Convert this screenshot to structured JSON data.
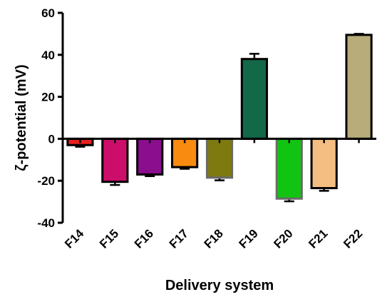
{
  "chart_data": {
    "type": "bar",
    "categories": [
      "F14",
      "F15",
      "F16",
      "F17",
      "F18",
      "F19",
      "F20",
      "F21",
      "F22"
    ],
    "values": [
      -3,
      -20.5,
      -17,
      -13.5,
      -18.5,
      38,
      -28.5,
      -23.5,
      49.5
    ],
    "errors": [
      0.8,
      1.5,
      0.8,
      0.8,
      1.3,
      2.5,
      1.3,
      1.3,
      0.5
    ],
    "colors": [
      "#e8201e",
      "#cc0e6a",
      "#8a0e8e",
      "#f98b10",
      "#7e7a10",
      "#136848",
      "#12c412",
      "#f4bd82",
      "#b8ac7a"
    ],
    "outline_colors": [
      "#000000",
      "#000000",
      "#000000",
      "#000000",
      "#6b6b6b",
      "#000000",
      "#6b6b6b",
      "#000000",
      "#000000"
    ],
    "xlabel": "Delivery system",
    "ylabel": "ζ-potential (mV)",
    "ylim": [
      -40,
      60
    ],
    "yticks": [
      -40,
      -20,
      0,
      20,
      40,
      60
    ],
    "grid": false,
    "legend": "none"
  }
}
